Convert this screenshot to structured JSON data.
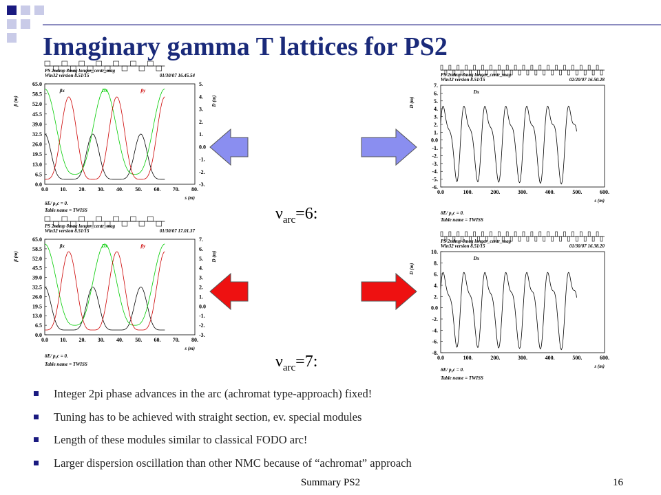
{
  "title": "Imaginary gamma T lattices for PS2",
  "nu_labels": [
    {
      "symbol": "ν",
      "subscript": "arc",
      "text": "=6:"
    },
    {
      "symbol": "ν",
      "subscript": "arc",
      "text": "=7:"
    }
  ],
  "plots": [
    {
      "header": [
        "PS 2ndmp 8mag longer_centr_mag",
        "Win32 version 8.51/15"
      ],
      "date": "01/30/07 16.45.54",
      "ylabel": "β (m)",
      "y2label": "D (m)",
      "xlabel": "s (m)",
      "yticks": [
        "65.0",
        "58.5",
        "52.0",
        "45.5",
        "39.0",
        "32.5",
        "26.0",
        "19.5",
        "13.0",
        "6.5",
        "0.0"
      ],
      "y2ticks": [
        "5.",
        "4.",
        "3.",
        "2.",
        "1.",
        "0.0",
        "-1.",
        "-2.",
        "-3."
      ],
      "xticks": [
        "0.0",
        "10.",
        "20.",
        "30.",
        "40.",
        "50.",
        "60.",
        "70.",
        "80."
      ],
      "legend": [
        "βx",
        "Dx",
        "βy"
      ],
      "footer": [
        "δE/ p₀c = 0.",
        "Table name = TWISS"
      ]
    },
    {
      "header": [
        "PS 2ndmp 8mag longer_centr_mag",
        "Win32 version 8.51/15"
      ],
      "date": "02/20/07 16.50.28",
      "ylabel": "D (m)",
      "xlabel": "s (m)",
      "yticks": [
        "7.",
        "6.",
        "5.",
        "4.",
        "3.",
        "2.",
        "1.",
        "0.0",
        "-1.",
        "-2.",
        "-3.",
        "-4.",
        "-5.",
        "-6."
      ],
      "xticks": [
        "0.0",
        "100.",
        "200.",
        "300.",
        "400.",
        "500.",
        "600."
      ],
      "legend": [
        "Dx"
      ],
      "footer": [
        "δE/ p₀c = 0.",
        "Table name = TWISS"
      ]
    },
    {
      "header": [
        "PS 2ndmp 8mag longer_centr_mag",
        "Win32 version 8.51/15"
      ],
      "date": "01/30/07 17.01.37",
      "ylabel": "β (m)",
      "y2label": "D (m)",
      "xlabel": "s (m)",
      "yticks": [
        "65.0",
        "58.5",
        "52.0",
        "45.5",
        "39.0",
        "32.5",
        "26.0",
        "19.5",
        "13.0",
        "6.5",
        "0.0"
      ],
      "y2ticks": [
        "7.",
        "6.",
        "5.",
        "4.",
        "3.",
        "2.",
        "1.",
        "0.0",
        "-1.",
        "-2.",
        "-3."
      ],
      "xticks": [
        "0.0",
        "10.",
        "20.",
        "30.",
        "40.",
        "50.",
        "60.",
        "70.",
        "80."
      ],
      "legend": [
        "βx",
        "Dx",
        "βy"
      ],
      "footer": [
        "δE/ p₀c = 0.",
        "Table name = TWISS"
      ]
    },
    {
      "header": [
        "PS 2ndmp 8mag longer_centr_mag",
        "Win32 version 8.51/15"
      ],
      "date": "01/30/07 16.38.20",
      "ylabel": "D (m)",
      "xlabel": "s (m)",
      "yticks": [
        "10.",
        "8.",
        "6.",
        "4.",
        "2.",
        "0.0",
        "-2.",
        "-4.",
        "-6.",
        "-8."
      ],
      "xticks": [
        "0.0",
        "100.",
        "200.",
        "300.",
        "400.",
        "500.",
        "600."
      ],
      "legend": [
        "Dx"
      ],
      "footer": [
        "δE/ p₀c = 0.",
        "Table name = TWISS"
      ]
    }
  ],
  "bullets": [
    "Integer 2pi phase advances in the arc (achromat type-approach) fixed!",
    "Tuning has to be achieved with straight section, ev. special modules",
    "Length of these modules similar to classical FODO arc!",
    "Larger dispersion oscillation than other NMC because of “achromat” approach"
  ],
  "footer": {
    "text": "Summary PS2",
    "page": "16"
  }
}
